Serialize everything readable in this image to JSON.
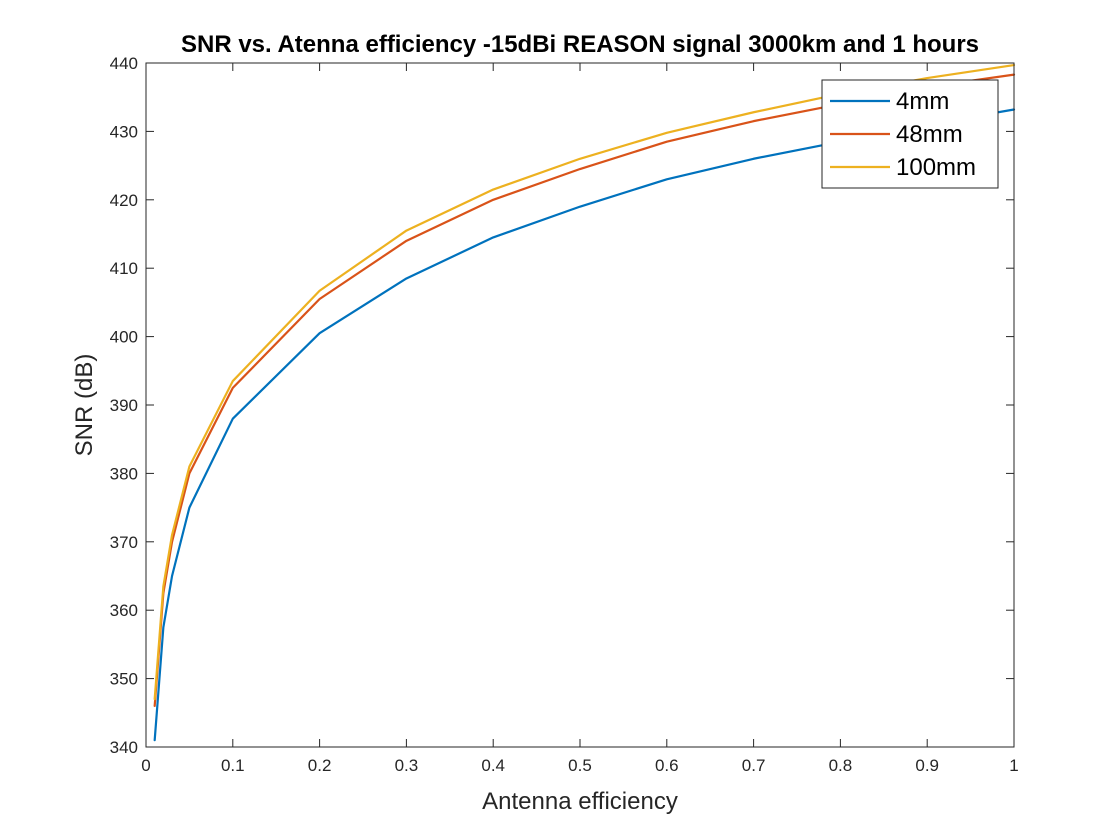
{
  "chart_data": {
    "type": "line",
    "title": "SNR vs. Atenna efficiency -15dBi REASON signal 3000km and 1 hours",
    "xlabel": "Antenna efficiency",
    "ylabel": "SNR (dB)",
    "xlim": [
      0,
      1
    ],
    "ylim": [
      340,
      440
    ],
    "xticks": [
      "0",
      "0.1",
      "0.2",
      "0.3",
      "0.4",
      "0.5",
      "0.6",
      "0.7",
      "0.8",
      "0.9",
      "1"
    ],
    "yticks": [
      "340",
      "350",
      "360",
      "370",
      "380",
      "390",
      "400",
      "410",
      "420",
      "430",
      "440"
    ],
    "grid": false,
    "legend_position": "top-right",
    "x": [
      0.01,
      0.02,
      0.03,
      0.05,
      0.1,
      0.2,
      0.3,
      0.4,
      0.5,
      0.6,
      0.7,
      0.8,
      0.9,
      1.0
    ],
    "series": [
      {
        "name": "4mm",
        "color": "#0072BD",
        "values": [
          341.0,
          357.5,
          365.0,
          375.0,
          388.0,
          400.5,
          408.5,
          414.5,
          419.0,
          423.0,
          426.0,
          428.5,
          431.0,
          433.2
        ]
      },
      {
        "name": "48mm",
        "color": "#D95319",
        "values": [
          346.0,
          362.5,
          370.0,
          380.0,
          392.5,
          405.5,
          414.0,
          420.0,
          424.5,
          428.5,
          431.5,
          434.0,
          436.5,
          438.3
        ]
      },
      {
        "name": "100mm",
        "color": "#EDB120",
        "values": [
          347.0,
          363.5,
          371.0,
          381.0,
          393.5,
          406.7,
          415.5,
          421.5,
          426.0,
          429.8,
          432.8,
          435.5,
          437.8,
          439.7
        ]
      }
    ]
  }
}
